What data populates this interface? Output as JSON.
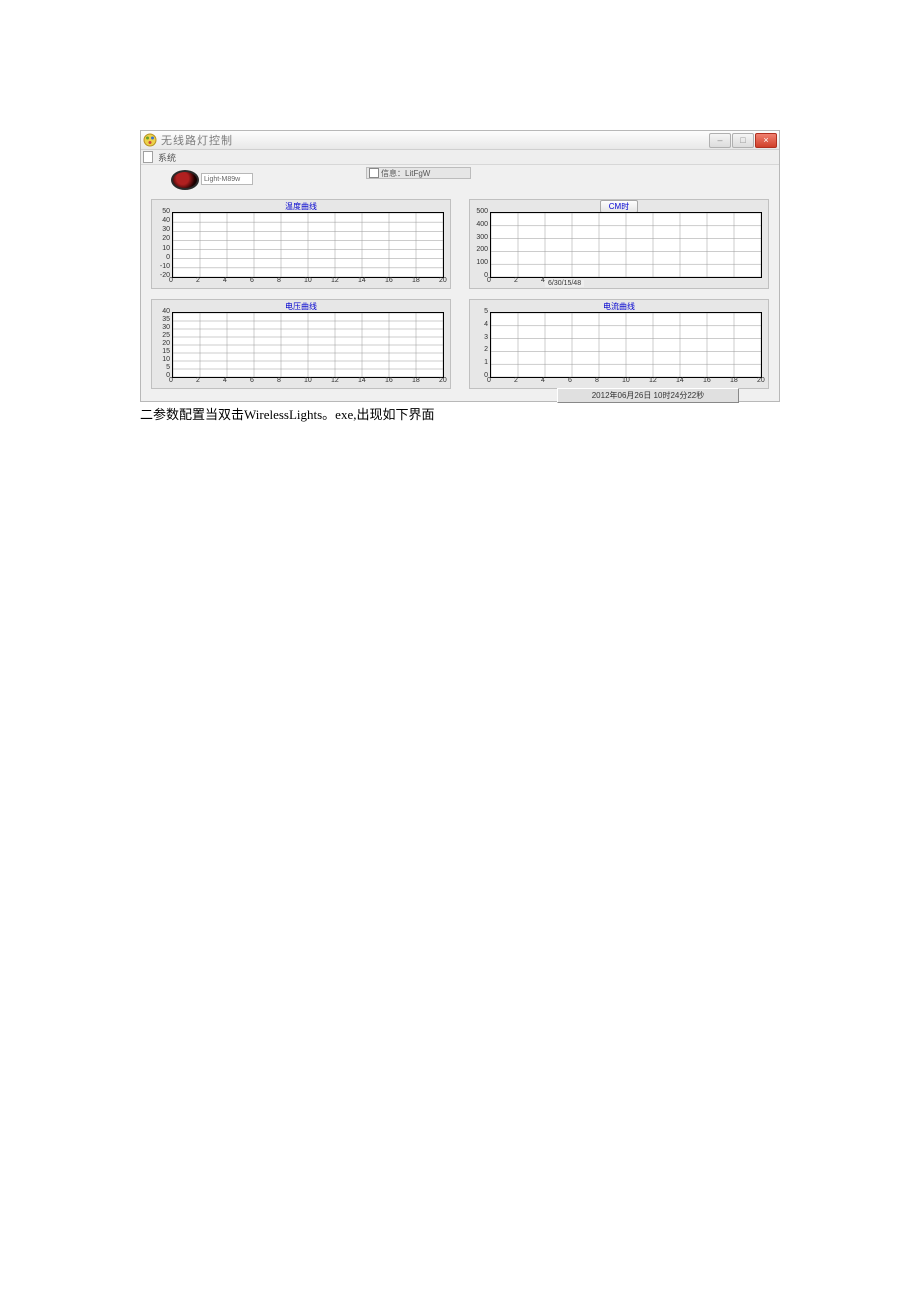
{
  "window": {
    "title": "无线路灯控制",
    "icon_name": "app-icon"
  },
  "menubar": {
    "item1": "系统"
  },
  "top": {
    "small_field": "Light-M89w",
    "center_label": "信息：LitFgW"
  },
  "charts": {
    "tl": {
      "title": "温度曲线",
      "ylim": [
        -20,
        50
      ],
      "yticks": [
        50,
        40,
        30,
        20,
        10,
        0,
        -10,
        -20
      ],
      "xlim": [
        0,
        20
      ],
      "xticks": [
        0,
        2,
        4,
        6,
        8,
        10,
        12,
        14,
        16,
        18,
        20
      ],
      "grid_color": "#9a9a9a",
      "bg": "#ffffff",
      "border": "#000000",
      "title_color": "#0000d0",
      "tick_color": "#303030"
    },
    "tr": {
      "title": "CM时",
      "button_style": true,
      "ylim": [
        0,
        500
      ],
      "yticks": [
        500,
        400,
        300,
        200,
        100,
        0
      ],
      "xlim": [
        0,
        20
      ],
      "xticks": [
        0,
        2,
        4
      ],
      "xaxis_extra_label": "6/30/15/48",
      "grid_color": "#9a9a9a",
      "bg": "#ffffff"
    },
    "bl": {
      "title": "电压曲线",
      "ylim": [
        0,
        40
      ],
      "yticks": [
        40,
        35,
        30,
        25,
        20,
        15,
        10,
        5,
        0
      ],
      "xlim": [
        0,
        20
      ],
      "xticks": [
        0,
        2,
        4,
        6,
        8,
        10,
        12,
        14,
        16,
        18,
        20
      ],
      "grid_color": "#9a9a9a",
      "bg": "#ffffff"
    },
    "br": {
      "title": "电流曲线",
      "ylim": [
        0,
        5
      ],
      "yticks": [
        5,
        4,
        3,
        2,
        1,
        0
      ],
      "xlim": [
        0,
        20
      ],
      "xticks": [
        0,
        2,
        4,
        6,
        8,
        10,
        12,
        14,
        16,
        18,
        20
      ],
      "grid_color": "#9a9a9a",
      "bg": "#ffffff"
    }
  },
  "footer": {
    "timestamp": "2012年06月26日 10时24分22秒"
  },
  "caption": "二参数配置当双击WirelessLights。exe,出现如下界面"
}
